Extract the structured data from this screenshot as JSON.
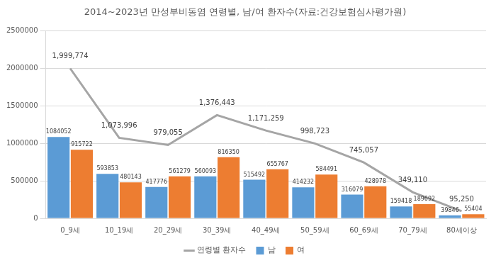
{
  "chart_data": {
    "type": "bar",
    "title": "2014~2023년 만성부비동염 연령별, 남/여 환자수(자료:건강보험심사평가원)",
    "categories": [
      "0_9세",
      "10_19세",
      "20_29세",
      "30_39세",
      "40_49세",
      "50_59세",
      "60_69세",
      "70_79세",
      "80세이상"
    ],
    "series": [
      {
        "name": "남",
        "type": "bar",
        "color": "#5b9bd5",
        "values": [
          1084052,
          593853,
          417776,
          560093,
          515492,
          414232,
          316079,
          159418,
          39846
        ]
      },
      {
        "name": "여",
        "type": "bar",
        "color": "#ed7d31",
        "values": [
          915722,
          480143,
          561279,
          816350,
          655767,
          584491,
          428978,
          189692,
          55404
        ]
      },
      {
        "name": "연령별 환자수",
        "type": "line",
        "color": "#a5a5a5",
        "marker": "none",
        "line_style": "solid",
        "values": [
          1999774,
          1073996,
          979055,
          1376443,
          1171259,
          998723,
          745057,
          349110,
          95250
        ],
        "value_labels": [
          "1,999,774",
          "1,073,996",
          "979,055",
          "1,376,443",
          "1,171,259",
          "998,723",
          "745,057",
          "349,110",
          "95,250"
        ]
      }
    ],
    "ylim": [
      0,
      2500000
    ],
    "yticks": [
      0,
      500000,
      1000000,
      1500000,
      2000000,
      2500000
    ],
    "grid": true,
    "legend": "bottom",
    "data_labels": true
  }
}
